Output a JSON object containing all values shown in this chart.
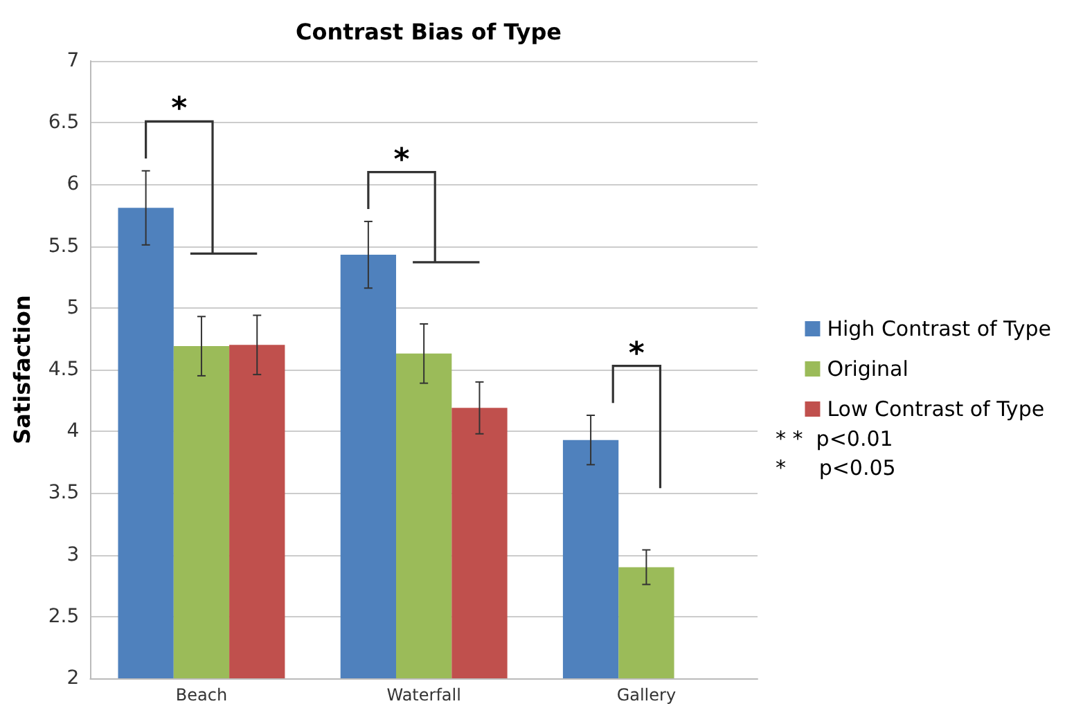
{
  "chart_data": {
    "type": "bar",
    "title": "Contrast Bias of Type",
    "ylabel": "Satisfaction",
    "categories": [
      "Beach",
      "Waterfall",
      "Gallery"
    ],
    "series": [
      {
        "name": "High Contrast of Type",
        "color": "#4f81bd",
        "values": [
          5.81,
          5.43,
          3.93
        ],
        "errors": [
          0.3,
          0.27,
          0.2
        ]
      },
      {
        "name": "Original",
        "color": "#9bbb59",
        "values": [
          4.69,
          4.63,
          2.9
        ],
        "errors": [
          0.24,
          0.24,
          0.14
        ]
      },
      {
        "name": "Low Contrast of Type",
        "color": "#c0504d",
        "values": [
          4.7,
          4.19,
          null
        ],
        "errors": [
          0.24,
          0.21,
          null
        ]
      }
    ],
    "ylim": [
      2,
      7
    ],
    "yticks": [
      2,
      2.5,
      3,
      3.5,
      4,
      4.5,
      5,
      5.5,
      6,
      6.5,
      7
    ],
    "grid": "y",
    "legend": "right",
    "annotations": [
      "*",
      "*",
      "*",
      "* *  p<0.01",
      "*     p<0.05"
    ]
  }
}
